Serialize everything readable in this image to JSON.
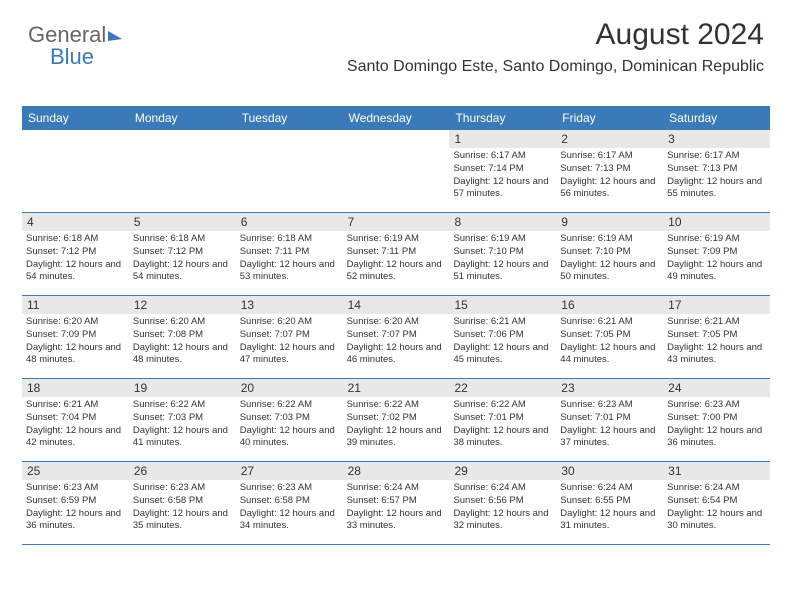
{
  "logo": {
    "text1": "General",
    "text2": "Blue"
  },
  "title": "August 2024",
  "location": "Santo Domingo Este, Santo Domingo, Dominican Republic",
  "day_names": [
    "Sunday",
    "Monday",
    "Tuesday",
    "Wednesday",
    "Thursday",
    "Friday",
    "Saturday"
  ],
  "colors": {
    "header_bg": "#3a7ab8",
    "header_text": "#ffffff",
    "daynum_bg": "#e8e8e8",
    "text": "#333333",
    "border": "#3a7ab8"
  },
  "weeks": [
    [
      {
        "day": "",
        "sunrise": "",
        "sunset": "",
        "daylight": ""
      },
      {
        "day": "",
        "sunrise": "",
        "sunset": "",
        "daylight": ""
      },
      {
        "day": "",
        "sunrise": "",
        "sunset": "",
        "daylight": ""
      },
      {
        "day": "",
        "sunrise": "",
        "sunset": "",
        "daylight": ""
      },
      {
        "day": "1",
        "sunrise": "Sunrise: 6:17 AM",
        "sunset": "Sunset: 7:14 PM",
        "daylight": "Daylight: 12 hours and 57 minutes."
      },
      {
        "day": "2",
        "sunrise": "Sunrise: 6:17 AM",
        "sunset": "Sunset: 7:13 PM",
        "daylight": "Daylight: 12 hours and 56 minutes."
      },
      {
        "day": "3",
        "sunrise": "Sunrise: 6:17 AM",
        "sunset": "Sunset: 7:13 PM",
        "daylight": "Daylight: 12 hours and 55 minutes."
      }
    ],
    [
      {
        "day": "4",
        "sunrise": "Sunrise: 6:18 AM",
        "sunset": "Sunset: 7:12 PM",
        "daylight": "Daylight: 12 hours and 54 minutes."
      },
      {
        "day": "5",
        "sunrise": "Sunrise: 6:18 AM",
        "sunset": "Sunset: 7:12 PM",
        "daylight": "Daylight: 12 hours and 54 minutes."
      },
      {
        "day": "6",
        "sunrise": "Sunrise: 6:18 AM",
        "sunset": "Sunset: 7:11 PM",
        "daylight": "Daylight: 12 hours and 53 minutes."
      },
      {
        "day": "7",
        "sunrise": "Sunrise: 6:19 AM",
        "sunset": "Sunset: 7:11 PM",
        "daylight": "Daylight: 12 hours and 52 minutes."
      },
      {
        "day": "8",
        "sunrise": "Sunrise: 6:19 AM",
        "sunset": "Sunset: 7:10 PM",
        "daylight": "Daylight: 12 hours and 51 minutes."
      },
      {
        "day": "9",
        "sunrise": "Sunrise: 6:19 AM",
        "sunset": "Sunset: 7:10 PM",
        "daylight": "Daylight: 12 hours and 50 minutes."
      },
      {
        "day": "10",
        "sunrise": "Sunrise: 6:19 AM",
        "sunset": "Sunset: 7:09 PM",
        "daylight": "Daylight: 12 hours and 49 minutes."
      }
    ],
    [
      {
        "day": "11",
        "sunrise": "Sunrise: 6:20 AM",
        "sunset": "Sunset: 7:09 PM",
        "daylight": "Daylight: 12 hours and 48 minutes."
      },
      {
        "day": "12",
        "sunrise": "Sunrise: 6:20 AM",
        "sunset": "Sunset: 7:08 PM",
        "daylight": "Daylight: 12 hours and 48 minutes."
      },
      {
        "day": "13",
        "sunrise": "Sunrise: 6:20 AM",
        "sunset": "Sunset: 7:07 PM",
        "daylight": "Daylight: 12 hours and 47 minutes."
      },
      {
        "day": "14",
        "sunrise": "Sunrise: 6:20 AM",
        "sunset": "Sunset: 7:07 PM",
        "daylight": "Daylight: 12 hours and 46 minutes."
      },
      {
        "day": "15",
        "sunrise": "Sunrise: 6:21 AM",
        "sunset": "Sunset: 7:06 PM",
        "daylight": "Daylight: 12 hours and 45 minutes."
      },
      {
        "day": "16",
        "sunrise": "Sunrise: 6:21 AM",
        "sunset": "Sunset: 7:05 PM",
        "daylight": "Daylight: 12 hours and 44 minutes."
      },
      {
        "day": "17",
        "sunrise": "Sunrise: 6:21 AM",
        "sunset": "Sunset: 7:05 PM",
        "daylight": "Daylight: 12 hours and 43 minutes."
      }
    ],
    [
      {
        "day": "18",
        "sunrise": "Sunrise: 6:21 AM",
        "sunset": "Sunset: 7:04 PM",
        "daylight": "Daylight: 12 hours and 42 minutes."
      },
      {
        "day": "19",
        "sunrise": "Sunrise: 6:22 AM",
        "sunset": "Sunset: 7:03 PM",
        "daylight": "Daylight: 12 hours and 41 minutes."
      },
      {
        "day": "20",
        "sunrise": "Sunrise: 6:22 AM",
        "sunset": "Sunset: 7:03 PM",
        "daylight": "Daylight: 12 hours and 40 minutes."
      },
      {
        "day": "21",
        "sunrise": "Sunrise: 6:22 AM",
        "sunset": "Sunset: 7:02 PM",
        "daylight": "Daylight: 12 hours and 39 minutes."
      },
      {
        "day": "22",
        "sunrise": "Sunrise: 6:22 AM",
        "sunset": "Sunset: 7:01 PM",
        "daylight": "Daylight: 12 hours and 38 minutes."
      },
      {
        "day": "23",
        "sunrise": "Sunrise: 6:23 AM",
        "sunset": "Sunset: 7:01 PM",
        "daylight": "Daylight: 12 hours and 37 minutes."
      },
      {
        "day": "24",
        "sunrise": "Sunrise: 6:23 AM",
        "sunset": "Sunset: 7:00 PM",
        "daylight": "Daylight: 12 hours and 36 minutes."
      }
    ],
    [
      {
        "day": "25",
        "sunrise": "Sunrise: 6:23 AM",
        "sunset": "Sunset: 6:59 PM",
        "daylight": "Daylight: 12 hours and 36 minutes."
      },
      {
        "day": "26",
        "sunrise": "Sunrise: 6:23 AM",
        "sunset": "Sunset: 6:58 PM",
        "daylight": "Daylight: 12 hours and 35 minutes."
      },
      {
        "day": "27",
        "sunrise": "Sunrise: 6:23 AM",
        "sunset": "Sunset: 6:58 PM",
        "daylight": "Daylight: 12 hours and 34 minutes."
      },
      {
        "day": "28",
        "sunrise": "Sunrise: 6:24 AM",
        "sunset": "Sunset: 6:57 PM",
        "daylight": "Daylight: 12 hours and 33 minutes."
      },
      {
        "day": "29",
        "sunrise": "Sunrise: 6:24 AM",
        "sunset": "Sunset: 6:56 PM",
        "daylight": "Daylight: 12 hours and 32 minutes."
      },
      {
        "day": "30",
        "sunrise": "Sunrise: 6:24 AM",
        "sunset": "Sunset: 6:55 PM",
        "daylight": "Daylight: 12 hours and 31 minutes."
      },
      {
        "day": "31",
        "sunrise": "Sunrise: 6:24 AM",
        "sunset": "Sunset: 6:54 PM",
        "daylight": "Daylight: 12 hours and 30 minutes."
      }
    ]
  ]
}
